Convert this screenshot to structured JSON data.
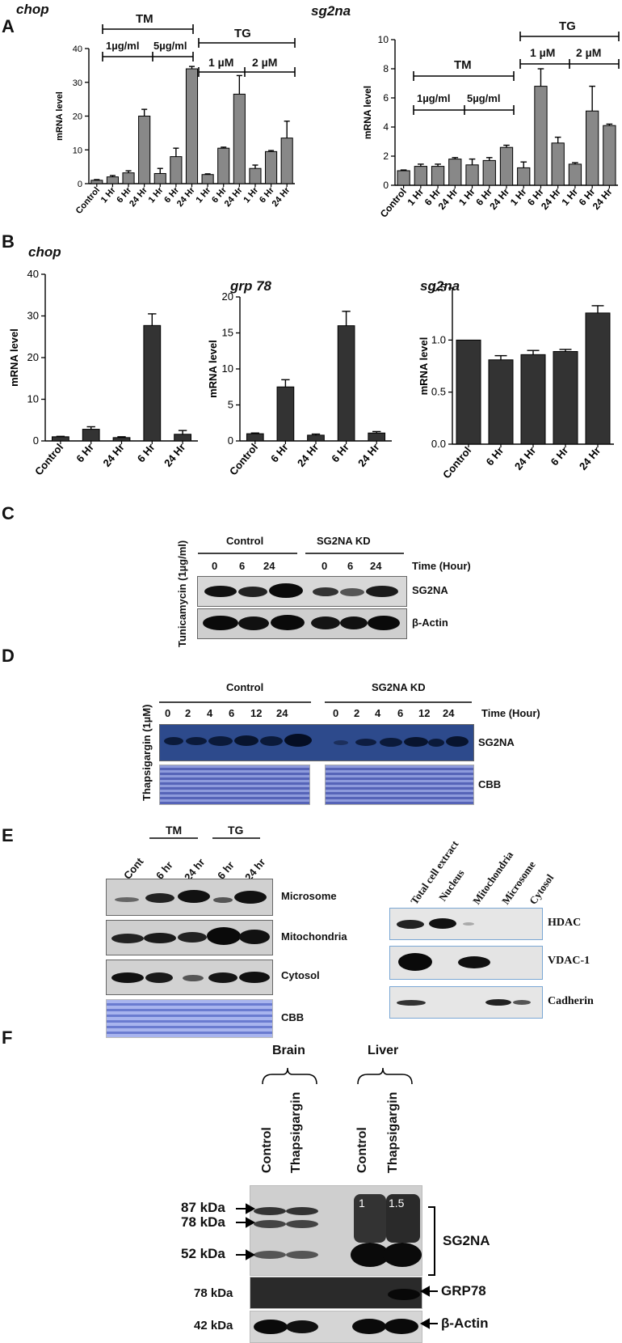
{
  "panels": {
    "A": "A",
    "B": "B",
    "C": "C",
    "D": "D",
    "E": "E",
    "F": "F"
  },
  "panelA": {
    "left_title": "chop",
    "right_title": "sg2na",
    "tm": "TM",
    "tg": "TG",
    "tm_doses": [
      "1µg/ml",
      "5µg/ml"
    ],
    "tg_doses": [
      "1 µM",
      "2 µM"
    ],
    "ylabel": "mRNA level"
  },
  "panelB": {
    "titles": [
      "chop",
      "grp 78",
      "sg2na"
    ],
    "ylabel": "mRNA level"
  },
  "chart_data": [
    {
      "type": "bar",
      "title": "chop",
      "ylabel": "mRNA level",
      "ylim": [
        0,
        40
      ],
      "yticks": [
        0,
        10,
        20,
        30,
        40
      ],
      "categories": [
        "Control",
        "1 Hr",
        "6 Hr",
        "24 Hr",
        "1 Hr",
        "6 Hr",
        "24 Hr",
        "1 Hr",
        "6 Hr",
        "24 Hr",
        "1 Hr",
        "6 Hr",
        "24 Hr"
      ],
      "values": [
        1,
        2,
        3.2,
        20,
        3,
        8,
        34,
        2.7,
        10.5,
        26.5,
        4.5,
        9.5,
        13.5
      ],
      "errors": [
        0.2,
        0.4,
        0.6,
        2,
        1.5,
        2.5,
        0.7,
        0.2,
        0.3,
        5.5,
        1,
        0.3,
        5
      ]
    },
    {
      "type": "bar",
      "title": "sg2na",
      "ylabel": "mRNA level",
      "ylim": [
        0,
        10
      ],
      "yticks": [
        0,
        2,
        4,
        6,
        8,
        10
      ],
      "categories": [
        "Control",
        "1 Hr",
        "6 Hr",
        "24 Hr",
        "1 Hr",
        "6 Hr",
        "24 Hr",
        "1 Hr",
        "6 Hr",
        "24 Hr",
        "1 Hr",
        "6 Hr",
        "24 Hr"
      ],
      "values": [
        1,
        1.3,
        1.3,
        1.8,
        1.4,
        1.7,
        2.6,
        1.2,
        6.8,
        2.9,
        1.45,
        5.1,
        4.1
      ],
      "errors": [
        0.05,
        0.15,
        0.15,
        0.1,
        0.4,
        0.2,
        0.15,
        0.4,
        1.2,
        0.4,
        0.1,
        1.7,
        0.1
      ]
    },
    {
      "type": "bar",
      "title": "chop",
      "ylabel": "mRNA level",
      "ylim": [
        0,
        40
      ],
      "yticks": [
        0,
        10,
        20,
        30,
        40
      ],
      "categories": [
        "Control",
        "6 Hr",
        "24 Hr",
        "6 Hr",
        "24 Hr"
      ],
      "values": [
        1,
        2.8,
        0.8,
        27.7,
        1.6
      ],
      "errors": [
        0.1,
        0.6,
        0.2,
        2.8,
        0.9
      ]
    },
    {
      "type": "bar",
      "title": "grp 78",
      "ylabel": "mRNA level",
      "ylim": [
        0,
        20
      ],
      "yticks": [
        0,
        5,
        10,
        15,
        20
      ],
      "categories": [
        "Control",
        "6 Hr",
        "24 Hr",
        "6 Hr",
        "24 Hr"
      ],
      "values": [
        1,
        7.5,
        0.8,
        16,
        1.1
      ],
      "errors": [
        0.1,
        1,
        0.15,
        2,
        0.2
      ]
    },
    {
      "type": "bar",
      "title": "sg2na",
      "ylabel": "mRNA level",
      "ylim": [
        0,
        1.5
      ],
      "yticks": [
        "0.0",
        "0.5",
        "1.0",
        "1.5"
      ],
      "categories": [
        "Control",
        "6 Hr",
        "24 Hr",
        "6 Hr",
        "24 Hr"
      ],
      "values": [
        1,
        0.81,
        0.86,
        0.89,
        1.26
      ],
      "errors": [
        0,
        0.04,
        0.04,
        0.02,
        0.07
      ]
    }
  ],
  "panelC": {
    "side": "Tunicamycin (1µg/ml)",
    "control": "Control",
    "kd": "SG2NA KD",
    "times": [
      "0",
      "6",
      "24",
      "0",
      "6",
      "24"
    ],
    "time_label": "Time (Hour)",
    "rows": [
      "SG2NA",
      "β-Actin"
    ]
  },
  "panelD": {
    "side": "Thapsigargin (1µM)",
    "control": "Control",
    "kd": "SG2NA KD",
    "times": [
      "0",
      "2",
      "4",
      "6",
      "12",
      "24",
      "0",
      "2",
      "4",
      "6",
      "12",
      "24"
    ],
    "time_label": "Time (Hour)",
    "rows": [
      "SG2NA",
      "CBB"
    ]
  },
  "panelE": {
    "lanes": [
      "Cont",
      "6 hr",
      "24 hr",
      "6 hr",
      "24 hr"
    ],
    "tm": "TM",
    "tg": "TG",
    "rows": [
      "Microsome",
      "Mitochondria",
      "Cytosol",
      "CBB"
    ],
    "fractions": [
      "Total cell extract",
      "Nucleus",
      "Mitochondria",
      "Microsome",
      "Cytosol"
    ],
    "markers": [
      "HDAC",
      "VDAC-1",
      "Cadherin"
    ]
  },
  "panelF": {
    "brain": "Brain",
    "liver": "Liver",
    "lanes": [
      "Control",
      "Thapsigargin",
      "Control",
      "Thapsigargin"
    ],
    "mw": [
      "87 kDa",
      "78 kDa",
      "52 kDa",
      "78 kDa",
      "42 kDa"
    ],
    "quant": [
      "1",
      "1.5"
    ],
    "rows": [
      "SG2NA",
      "GRP78",
      "β-Actin"
    ]
  }
}
